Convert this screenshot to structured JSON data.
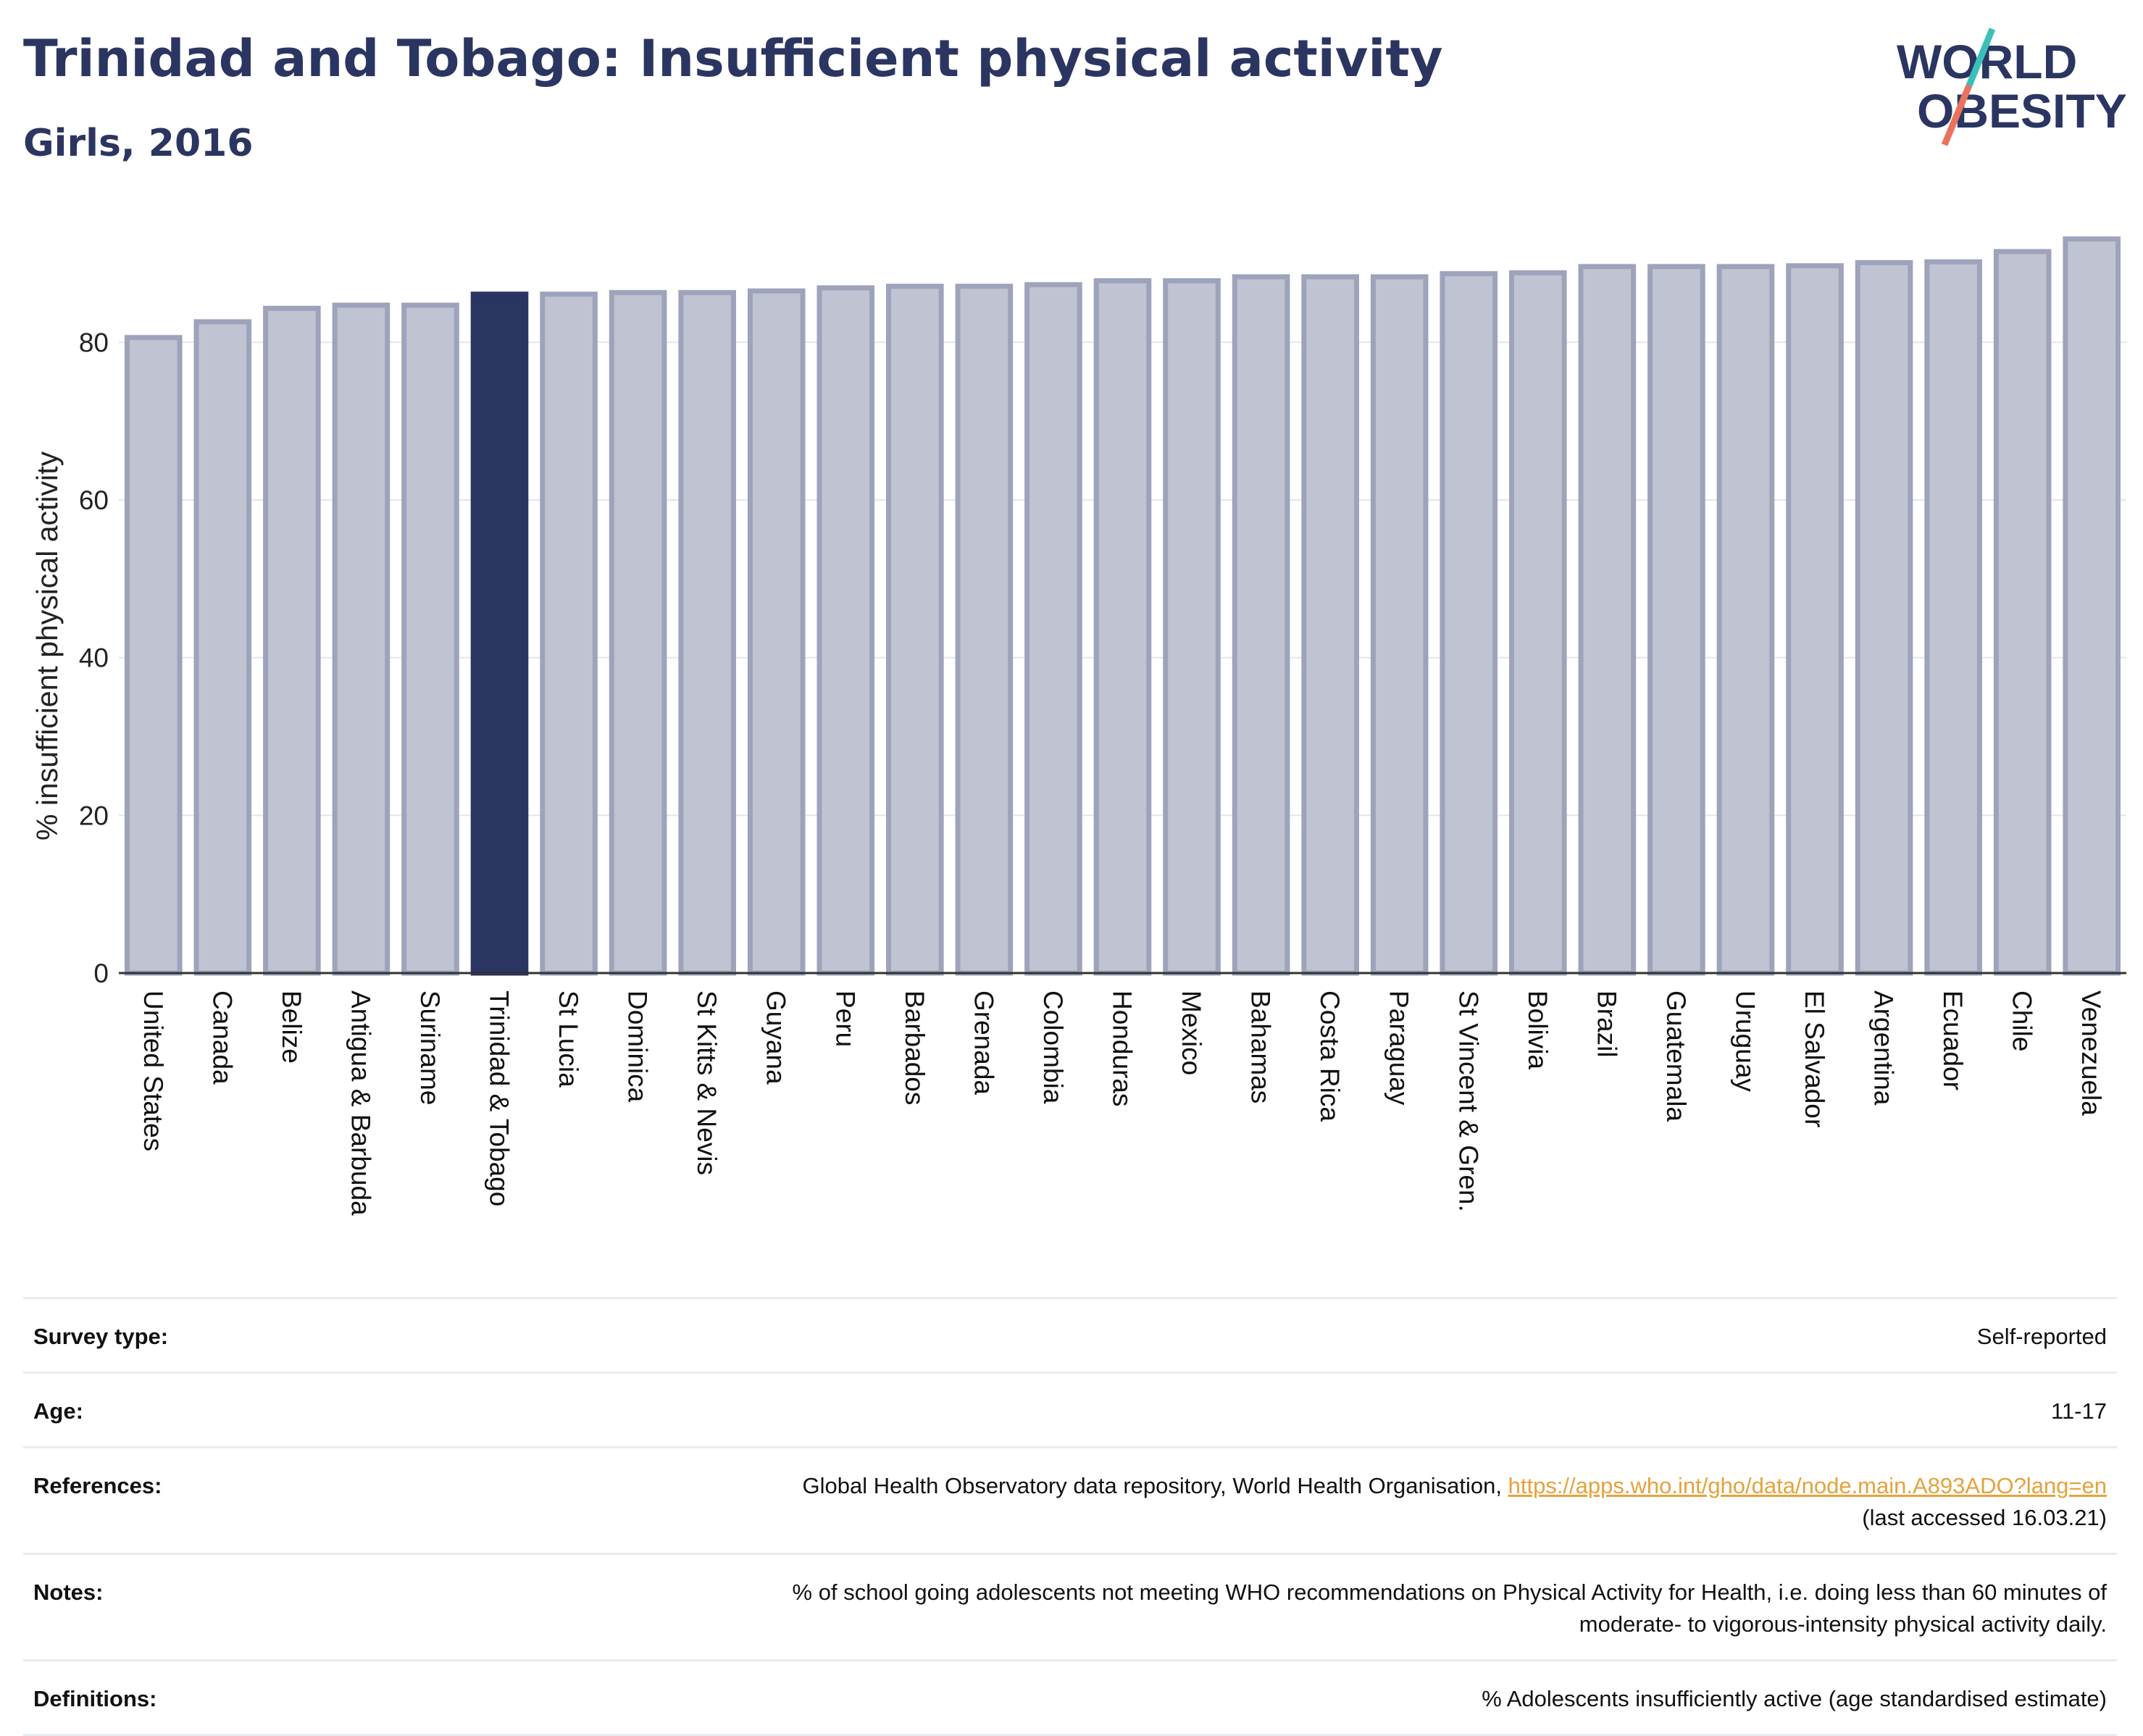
{
  "header": {
    "title": "Trinidad and Tobago: Insufficient physical activity",
    "subtitle": "Girls, 2016"
  },
  "logo": {
    "line1": "WORLD",
    "line2": "OBESITY"
  },
  "colors": {
    "highlight": "#2b3561",
    "bar": "#c0c3d2",
    "bar_border": "#9ea3bb",
    "title": "#2b3561"
  },
  "chart_data": {
    "type": "bar",
    "title": "Trinidad and Tobago: Insufficient physical activity",
    "subtitle": "Girls, 2016",
    "xlabel": "",
    "ylabel": "% insufficient physical activity",
    "ylim": [
      0,
      94
    ],
    "yticks": [
      0,
      20,
      40,
      60,
      80
    ],
    "grid": true,
    "highlight": "Trinidad & Tobago",
    "categories": [
      "United States",
      "Canada",
      "Belize",
      "Antigua & Barbuda",
      "Suriname",
      "Trinidad & Tobago",
      "St Lucia",
      "Dominica",
      "St Kitts & Nevis",
      "Guyana",
      "Peru",
      "Barbados",
      "Grenada",
      "Colombia",
      "Honduras",
      "Mexico",
      "Bahamas",
      "Costa Rica",
      "Paraguay",
      "St Vincent & Gren.",
      "Bolivia",
      "Brazil",
      "Guatemala",
      "Uruguay",
      "El Salvador",
      "Argentina",
      "Ecuador",
      "Chile",
      "Venezuela"
    ],
    "values": [
      80.6,
      82.6,
      84.3,
      84.7,
      84.7,
      86.1,
      86.1,
      86.3,
      86.3,
      86.5,
      86.9,
      87.1,
      87.1,
      87.3,
      87.8,
      87.8,
      88.3,
      88.3,
      88.3,
      88.7,
      88.8,
      89.6,
      89.6,
      89.6,
      89.7,
      90.1,
      90.2,
      91.5,
      93.1
    ]
  },
  "meta": {
    "survey_type_label": "Survey type:",
    "survey_type_value": "Self-reported",
    "age_label": "Age:",
    "age_value": "11-17",
    "references_label": "References:",
    "references_text": "Global Health Observatory data repository, World Health Organisation, ",
    "references_link": "https://apps.who.int/gho/data/node.main.A893ADO?lang=en",
    "references_accessed": "(last accessed 16.03.21)",
    "notes_label": "Notes:",
    "notes_line1": "% of school going adolescents not meeting WHO recommendations on Physical Activity for Health, i.e. doing less than 60 minutes of",
    "notes_line2": "moderate- to vigorous-intensity physical activity daily.",
    "definitions_label": "Definitions:",
    "definitions_value": "% Adolescents insufficiently active (age standardised estimate)"
  }
}
